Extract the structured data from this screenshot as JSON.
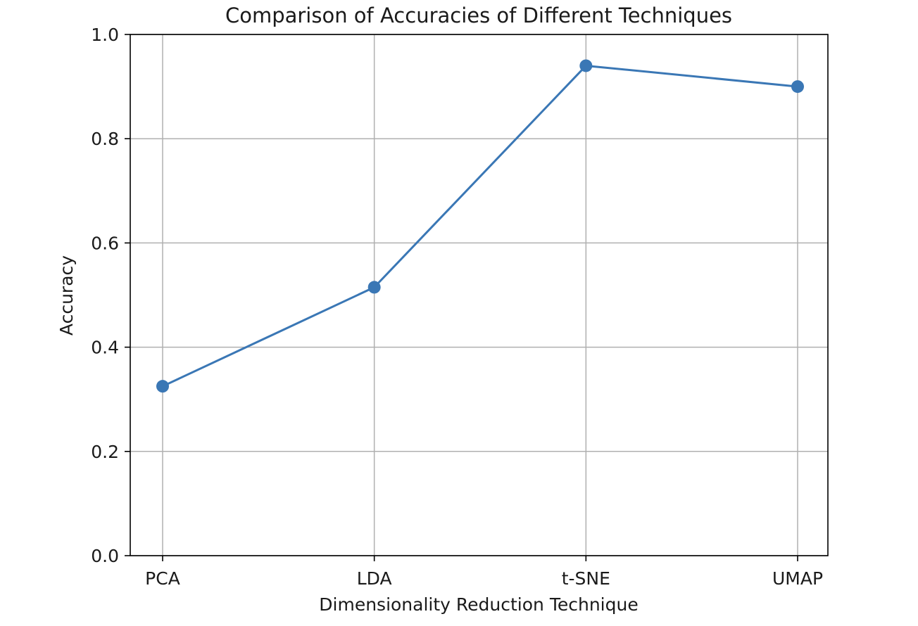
{
  "chart_data": {
    "type": "line",
    "title": "Comparison of Accuracies of Different Techniques",
    "xlabel": "Dimensionality Reduction Technique",
    "ylabel": "Accuracy",
    "categories": [
      "PCA",
      "LDA",
      "t-SNE",
      "UMAP"
    ],
    "series": [
      {
        "values": [
          0.325,
          0.515,
          0.94,
          0.9
        ]
      }
    ],
    "ylim": [
      0.0,
      1.0
    ],
    "yticks": [
      "0.0",
      "0.2",
      "0.4",
      "0.6",
      "0.8",
      "1.0"
    ],
    "grid": true,
    "line_color": "#3a77b5",
    "marker": "circle"
  }
}
